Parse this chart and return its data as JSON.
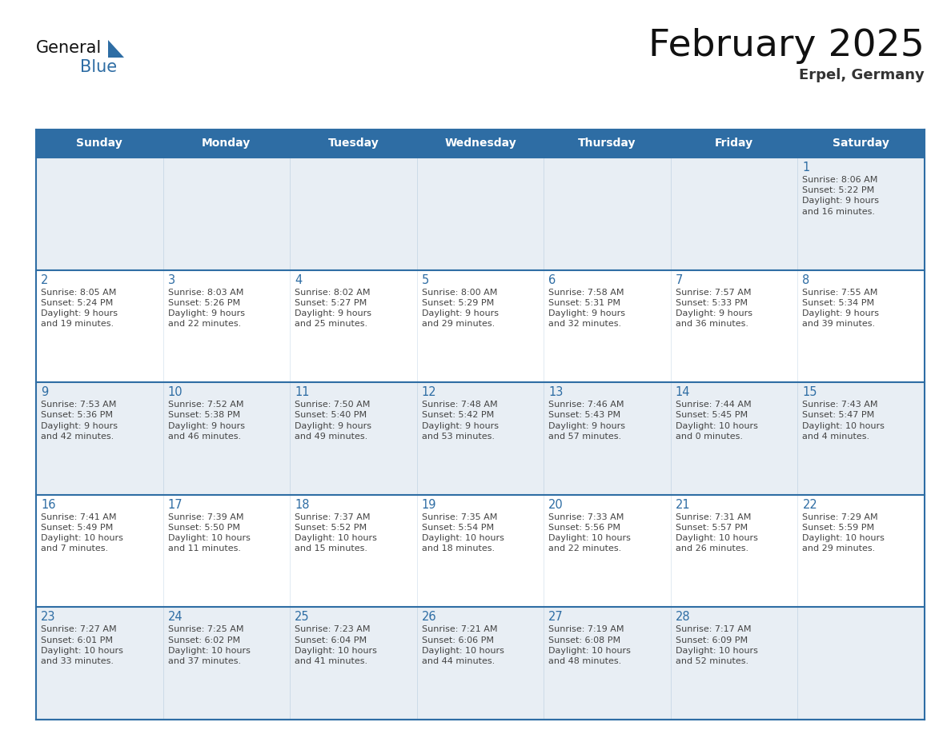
{
  "title": "February 2025",
  "subtitle": "Erpel, Germany",
  "days_of_week": [
    "Sunday",
    "Monday",
    "Tuesday",
    "Wednesday",
    "Thursday",
    "Friday",
    "Saturday"
  ],
  "header_bg_color": "#2e6da4",
  "header_text_color": "#ffffff",
  "cell_bg_white": "#ffffff",
  "cell_bg_gray": "#e8eef4",
  "border_color": "#2e6da4",
  "day_num_color": "#2e6da4",
  "text_color": "#444444",
  "title_color": "#111111",
  "subtitle_color": "#333333",
  "logo_general_color": "#111111",
  "logo_blue_color": "#2e6da4",
  "logo_triangle_color": "#2e6da4",
  "calendar_data": [
    [
      {
        "day": null,
        "info": null
      },
      {
        "day": null,
        "info": null
      },
      {
        "day": null,
        "info": null
      },
      {
        "day": null,
        "info": null
      },
      {
        "day": null,
        "info": null
      },
      {
        "day": null,
        "info": null
      },
      {
        "day": 1,
        "info": "Sunrise: 8:06 AM\nSunset: 5:22 PM\nDaylight: 9 hours\nand 16 minutes."
      }
    ],
    [
      {
        "day": 2,
        "info": "Sunrise: 8:05 AM\nSunset: 5:24 PM\nDaylight: 9 hours\nand 19 minutes."
      },
      {
        "day": 3,
        "info": "Sunrise: 8:03 AM\nSunset: 5:26 PM\nDaylight: 9 hours\nand 22 minutes."
      },
      {
        "day": 4,
        "info": "Sunrise: 8:02 AM\nSunset: 5:27 PM\nDaylight: 9 hours\nand 25 minutes."
      },
      {
        "day": 5,
        "info": "Sunrise: 8:00 AM\nSunset: 5:29 PM\nDaylight: 9 hours\nand 29 minutes."
      },
      {
        "day": 6,
        "info": "Sunrise: 7:58 AM\nSunset: 5:31 PM\nDaylight: 9 hours\nand 32 minutes."
      },
      {
        "day": 7,
        "info": "Sunrise: 7:57 AM\nSunset: 5:33 PM\nDaylight: 9 hours\nand 36 minutes."
      },
      {
        "day": 8,
        "info": "Sunrise: 7:55 AM\nSunset: 5:34 PM\nDaylight: 9 hours\nand 39 minutes."
      }
    ],
    [
      {
        "day": 9,
        "info": "Sunrise: 7:53 AM\nSunset: 5:36 PM\nDaylight: 9 hours\nand 42 minutes."
      },
      {
        "day": 10,
        "info": "Sunrise: 7:52 AM\nSunset: 5:38 PM\nDaylight: 9 hours\nand 46 minutes."
      },
      {
        "day": 11,
        "info": "Sunrise: 7:50 AM\nSunset: 5:40 PM\nDaylight: 9 hours\nand 49 minutes."
      },
      {
        "day": 12,
        "info": "Sunrise: 7:48 AM\nSunset: 5:42 PM\nDaylight: 9 hours\nand 53 minutes."
      },
      {
        "day": 13,
        "info": "Sunrise: 7:46 AM\nSunset: 5:43 PM\nDaylight: 9 hours\nand 57 minutes."
      },
      {
        "day": 14,
        "info": "Sunrise: 7:44 AM\nSunset: 5:45 PM\nDaylight: 10 hours\nand 0 minutes."
      },
      {
        "day": 15,
        "info": "Sunrise: 7:43 AM\nSunset: 5:47 PM\nDaylight: 10 hours\nand 4 minutes."
      }
    ],
    [
      {
        "day": 16,
        "info": "Sunrise: 7:41 AM\nSunset: 5:49 PM\nDaylight: 10 hours\nand 7 minutes."
      },
      {
        "day": 17,
        "info": "Sunrise: 7:39 AM\nSunset: 5:50 PM\nDaylight: 10 hours\nand 11 minutes."
      },
      {
        "day": 18,
        "info": "Sunrise: 7:37 AM\nSunset: 5:52 PM\nDaylight: 10 hours\nand 15 minutes."
      },
      {
        "day": 19,
        "info": "Sunrise: 7:35 AM\nSunset: 5:54 PM\nDaylight: 10 hours\nand 18 minutes."
      },
      {
        "day": 20,
        "info": "Sunrise: 7:33 AM\nSunset: 5:56 PM\nDaylight: 10 hours\nand 22 minutes."
      },
      {
        "day": 21,
        "info": "Sunrise: 7:31 AM\nSunset: 5:57 PM\nDaylight: 10 hours\nand 26 minutes."
      },
      {
        "day": 22,
        "info": "Sunrise: 7:29 AM\nSunset: 5:59 PM\nDaylight: 10 hours\nand 29 minutes."
      }
    ],
    [
      {
        "day": 23,
        "info": "Sunrise: 7:27 AM\nSunset: 6:01 PM\nDaylight: 10 hours\nand 33 minutes."
      },
      {
        "day": 24,
        "info": "Sunrise: 7:25 AM\nSunset: 6:02 PM\nDaylight: 10 hours\nand 37 minutes."
      },
      {
        "day": 25,
        "info": "Sunrise: 7:23 AM\nSunset: 6:04 PM\nDaylight: 10 hours\nand 41 minutes."
      },
      {
        "day": 26,
        "info": "Sunrise: 7:21 AM\nSunset: 6:06 PM\nDaylight: 10 hours\nand 44 minutes."
      },
      {
        "day": 27,
        "info": "Sunrise: 7:19 AM\nSunset: 6:08 PM\nDaylight: 10 hours\nand 48 minutes."
      },
      {
        "day": 28,
        "info": "Sunrise: 7:17 AM\nSunset: 6:09 PM\nDaylight: 10 hours\nand 52 minutes."
      },
      {
        "day": null,
        "info": null
      }
    ]
  ]
}
